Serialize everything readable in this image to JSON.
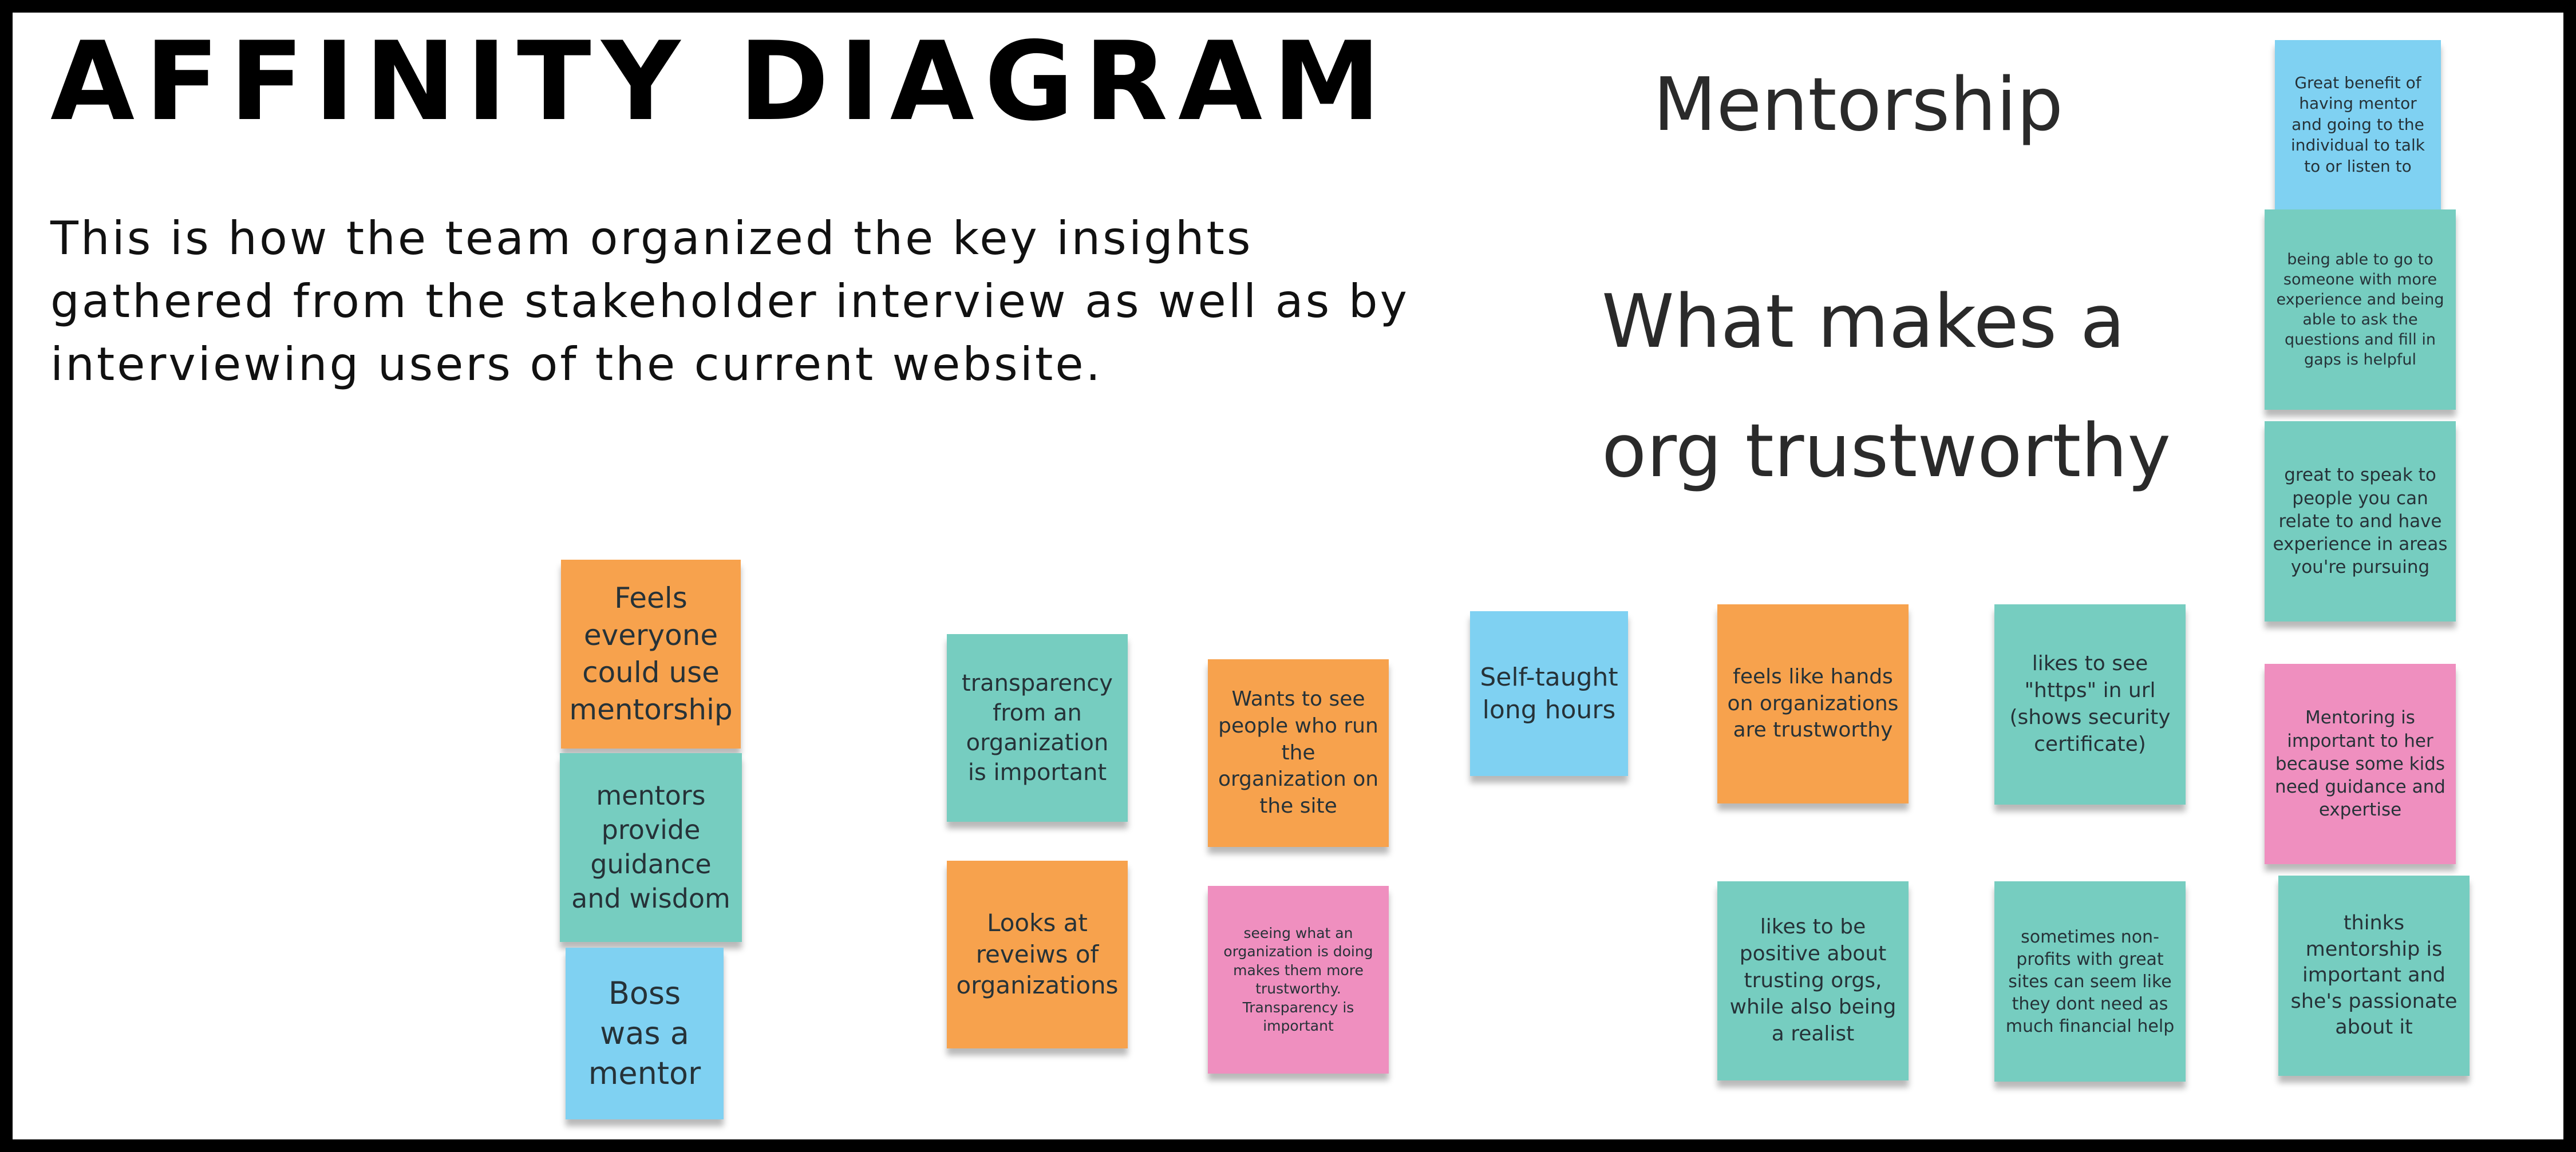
{
  "title": "AFFINITY DIAGRAM",
  "description": "This is how the team organized the key insights gathered from the stakeholder interview as well as by interviewing users of the current website.",
  "headings": {
    "mentorship": "Mentorship",
    "trust": "What makes a org trustworthy"
  },
  "colors": {
    "orange": "#f7a24d",
    "teal": "#76cdc0",
    "blue": "#7fd1f2",
    "pink": "#ef8fbf"
  },
  "notes": {
    "feels_everyone": "Feels everyone could use mentorship",
    "mentors_provide": "mentors provide guidance and wisdom",
    "boss_mentor": "Boss was a mentor",
    "transparency": "transparency from an organization is important",
    "looks_reviews": "Looks at reveiws of organizations",
    "wants_to_see": "Wants to see people who run the organization on the site",
    "seeing_what": "seeing what an organization is doing makes them more trustworthy. Transparency is important",
    "self_taught": "Self-taught long hours",
    "hands_on": "feels like hands on organizations are trustworthy",
    "likes_positive": "likes to be positive about trusting orgs, while also being a realist",
    "https": "likes to see \"https\" in url (shows security certificate)",
    "non_profits": "sometimes non-profits with great sites can seem like they dont need as much financial help",
    "great_benefit": "Great benefit of having mentor and going to the individual to talk to or listen to",
    "being_able": "being able to go to someone with more experience and being able to ask the questions and fill in gaps is helpful",
    "great_to_speak": "great to speak to people you can relate to and have experience in areas you're pursuing",
    "mentoring_important": "Mentoring is important to her because some kids need guidance and expertise",
    "thinks_mentorship": "thinks mentorship is important and she's passionate about it"
  }
}
